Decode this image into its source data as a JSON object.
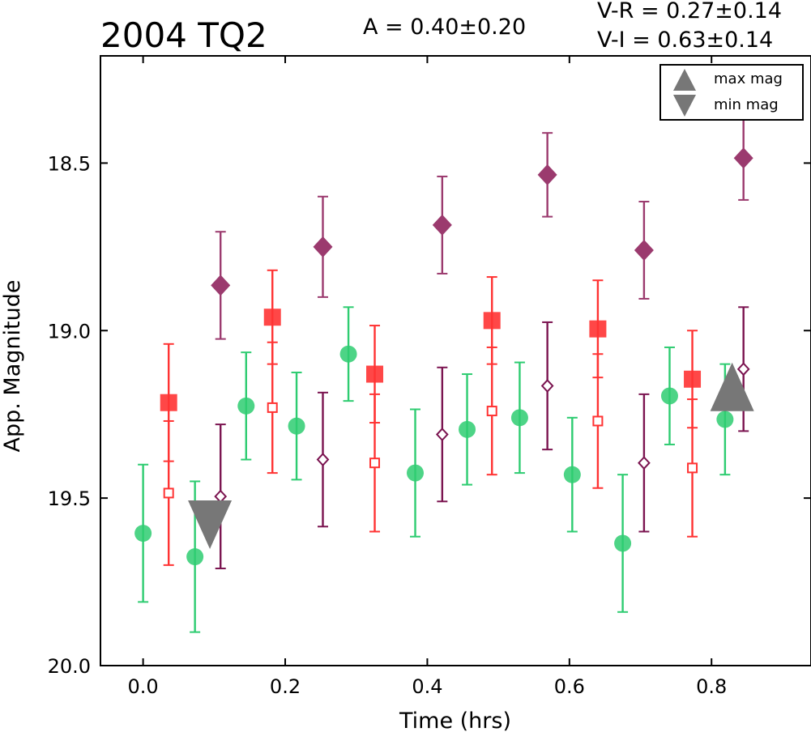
{
  "chart_data": {
    "type": "scatter",
    "title": "2004 TQ2",
    "xlabel": "Time (hrs)",
    "ylabel": "App. Magnitude",
    "xlim": [
      -0.06,
      0.94
    ],
    "ylim": [
      20.0,
      18.18
    ],
    "y_inverted": true,
    "grid": false,
    "legend_placement": "top-right",
    "x_ticks": [
      {
        "value": 0.0,
        "label": "0.0"
      },
      {
        "value": 0.2,
        "label": "0.2"
      },
      {
        "value": 0.4,
        "label": "0.4"
      },
      {
        "value": 0.6,
        "label": "0.6"
      },
      {
        "value": 0.8,
        "label": "0.8"
      }
    ],
    "y_ticks": [
      {
        "value": 18.5,
        "label": "18.5"
      },
      {
        "value": 19.0,
        "label": "19.0"
      },
      {
        "value": 19.5,
        "label": "19.5"
      },
      {
        "value": 20.0,
        "label": "20.0"
      }
    ],
    "annotations": {
      "amplitude": "A  = 0.40±0.20",
      "v_r": "V-R = 0.27±0.14",
      "v_i": "V-I  = 0.63±0.14"
    },
    "legend": [
      {
        "label": "max mag",
        "marker": "triangle-up"
      },
      {
        "label": "min mag",
        "marker": "triangle-down"
      }
    ],
    "colors": {
      "green": "#2ecc71",
      "red": "#ff3333",
      "purple_dark": "#7b1450",
      "purple_fill": "#9b3a6e",
      "gray": "#777777"
    },
    "series": [
      {
        "marker": "circle-filled",
        "color": "#2ecc71",
        "points": [
          {
            "x": 0.0,
            "y": 19.605,
            "err": 0.205
          },
          {
            "x": 0.073,
            "y": 19.675,
            "err": 0.225
          },
          {
            "x": 0.145,
            "y": 19.225,
            "err": 0.16
          },
          {
            "x": 0.216,
            "y": 19.285,
            "err": 0.16
          },
          {
            "x": 0.289,
            "y": 19.07,
            "err": 0.14
          },
          {
            "x": 0.383,
            "y": 19.425,
            "err": 0.19
          },
          {
            "x": 0.456,
            "y": 19.295,
            "err": 0.165
          },
          {
            "x": 0.53,
            "y": 19.26,
            "err": 0.165
          },
          {
            "x": 0.604,
            "y": 19.43,
            "err": 0.17
          },
          {
            "x": 0.675,
            "y": 19.635,
            "err": 0.205
          },
          {
            "x": 0.741,
            "y": 19.195,
            "err": 0.145
          },
          {
            "x": 0.819,
            "y": 19.265,
            "err": 0.165
          }
        ]
      },
      {
        "marker": "square-filled",
        "color": "#ff3333",
        "points": [
          {
            "x": 0.036,
            "y": 19.215,
            "err": 0.175
          },
          {
            "x": 0.182,
            "y": 18.96,
            "err": 0.14
          },
          {
            "x": 0.326,
            "y": 19.13,
            "err": 0.145
          },
          {
            "x": 0.491,
            "y": 18.97,
            "err": 0.13
          },
          {
            "x": 0.64,
            "y": 18.995,
            "err": 0.145
          },
          {
            "x": 0.773,
            "y": 19.145,
            "err": 0.145
          }
        ]
      },
      {
        "marker": "square-open",
        "color": "#ff3333",
        "points": [
          {
            "x": 0.036,
            "y": 19.485,
            "err": 0.215
          },
          {
            "x": 0.182,
            "y": 19.23,
            "err": 0.195
          },
          {
            "x": 0.326,
            "y": 19.395,
            "err": 0.205
          },
          {
            "x": 0.491,
            "y": 19.24,
            "err": 0.19
          },
          {
            "x": 0.64,
            "y": 19.27,
            "err": 0.2
          },
          {
            "x": 0.773,
            "y": 19.41,
            "err": 0.205
          }
        ]
      },
      {
        "marker": "diamond-filled",
        "color": "#9b3a6e",
        "points": [
          {
            "x": 0.109,
            "y": 18.865,
            "err": 0.16
          },
          {
            "x": 0.253,
            "y": 18.75,
            "err": 0.15
          },
          {
            "x": 0.421,
            "y": 18.685,
            "err": 0.145
          },
          {
            "x": 0.569,
            "y": 18.535,
            "err": 0.125
          },
          {
            "x": 0.705,
            "y": 18.76,
            "err": 0.145
          },
          {
            "x": 0.845,
            "y": 18.485,
            "err": 0.125
          }
        ]
      },
      {
        "marker": "diamond-open",
        "color": "#7b1450",
        "points": [
          {
            "x": 0.109,
            "y": 19.495,
            "err": 0.215
          },
          {
            "x": 0.253,
            "y": 19.385,
            "err": 0.2
          },
          {
            "x": 0.421,
            "y": 19.31,
            "err": 0.2
          },
          {
            "x": 0.569,
            "y": 19.165,
            "err": 0.19
          },
          {
            "x": 0.705,
            "y": 19.395,
            "err": 0.205
          },
          {
            "x": 0.845,
            "y": 19.115,
            "err": 0.185
          }
        ]
      },
      {
        "marker": "triangle-up",
        "color": "#777777",
        "points": [
          {
            "x": 0.829,
            "y": 19.185
          }
        ]
      },
      {
        "marker": "triangle-down",
        "color": "#777777",
        "points": [
          {
            "x": 0.094,
            "y": 19.56
          }
        ]
      }
    ]
  }
}
